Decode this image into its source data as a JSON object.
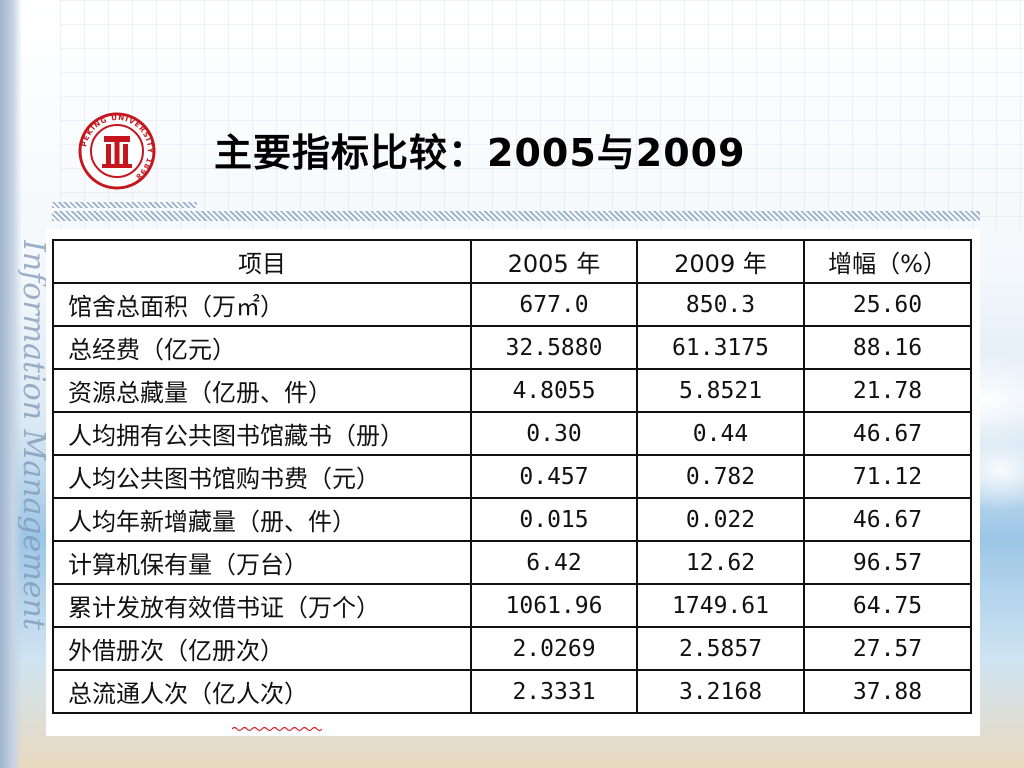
{
  "slide": {
    "title": "主要指标比较：2005与2009",
    "logo_text": "PEKING UNIVERSITY 1898",
    "side_text": "Information Management"
  },
  "table": {
    "headers": [
      "项目",
      "2005 年",
      "2009 年",
      "增幅（%）"
    ],
    "rows": [
      {
        "item": "馆舍总面积（万㎡）",
        "y2005": "677.0",
        "y2009": "850.3",
        "growth": "25.60"
      },
      {
        "item": "总经费（亿元）",
        "y2005": "32.5880",
        "y2009": "61.3175",
        "growth": "88.16"
      },
      {
        "item": "资源总藏量（亿册、件）",
        "y2005": "4.8055",
        "y2009": "5.8521",
        "growth": "21.78"
      },
      {
        "item": "人均拥有公共图书馆藏书（册）",
        "y2005": "0.30",
        "y2009": "0.44",
        "growth": "46.67"
      },
      {
        "item": "人均公共图书馆购书费（元）",
        "y2005": "0.457",
        "y2009": "0.782",
        "growth": "71.12"
      },
      {
        "item": "人均年新增藏量（册、件）",
        "y2005": "0.015",
        "y2009": "0.022",
        "growth": "46.67"
      },
      {
        "item": "计算机保有量（万台）",
        "y2005": "6.42",
        "y2009": "12.62",
        "growth": "96.57"
      },
      {
        "item": "累计发放有效借书证（万个）",
        "y2005": "1061.96",
        "y2009": "1749.61",
        "growth": "64.75"
      },
      {
        "item": "外借册次（亿册次）",
        "y2005": "2.0269",
        "y2009": "2.5857",
        "growth": "27.57"
      },
      {
        "item": "总流通人次（亿人次）",
        "y2005": "2.3331",
        "y2009": "3.2168",
        "growth": "37.88"
      }
    ]
  },
  "colors": {
    "accent_red": "#c4161c",
    "divider_blue": "#9db5cf"
  }
}
